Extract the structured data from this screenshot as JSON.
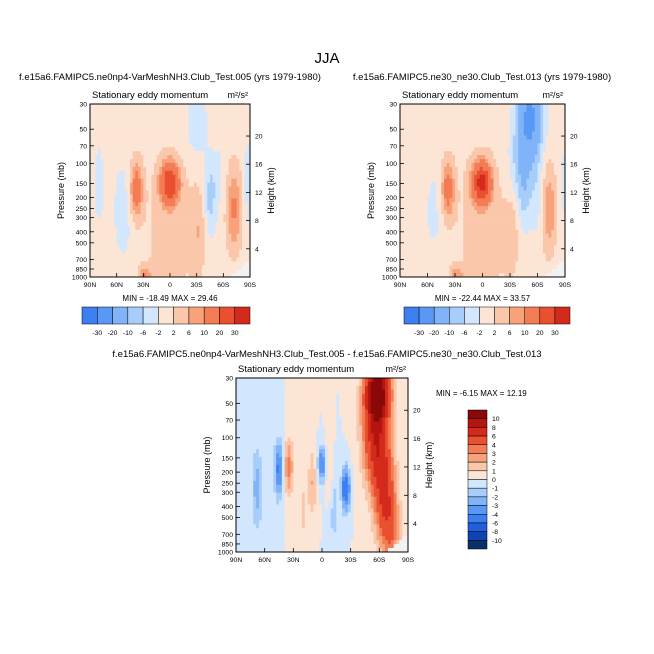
{
  "figure": {
    "title": "JJA",
    "colors": {
      "neg": [
        "#08306b",
        "#0c44b3",
        "#1f5fe0",
        "#3b7ff0",
        "#5b98f5",
        "#80b3f8",
        "#a8cdfb",
        "#d2e6fd"
      ],
      "pos": [
        "#fde5d6",
        "#fbc7aa",
        "#f8a27c",
        "#f47c55",
        "#e9502f",
        "#d42a1c",
        "#b5140f",
        "#8b0808"
      ],
      "mask": "#f2f2f2"
    }
  },
  "chart_data": [
    {
      "type": "heatmap",
      "id": "p1",
      "title": "f.e15a6.FAMIPC5.ne0np4-VarMeshNH3.Club_Test.005 (yrs 1979-1980)",
      "subtitle": "Stationary eddy momentum",
      "units": "m²/s²",
      "xlabel": "",
      "ylabel": "Pressure (mb)",
      "ylabel_right": "Height (km)",
      "x_ticks": [
        "90N",
        "60N",
        "30N",
        "0",
        "30S",
        "60S",
        "90S"
      ],
      "y_ticks": [
        "30",
        "50",
        "70",
        "100",
        "150",
        "200",
        "250",
        "300",
        "400",
        "500",
        "700",
        "850",
        "1000"
      ],
      "y_values": [
        30,
        50,
        70,
        100,
        150,
        200,
        250,
        300,
        400,
        500,
        700,
        850,
        1000
      ],
      "height_ticks": [
        "20",
        "16",
        "12",
        "8",
        "4"
      ],
      "height_values": [
        20,
        16,
        12,
        8,
        4
      ],
      "ylim": [
        1000,
        30
      ],
      "stats": "MIN = -18.49  MAX = 29.46",
      "min": -18.49,
      "max": 29.46,
      "colorbar_levels": [
        "-30",
        "-20",
        "-10",
        "-6",
        "-2",
        "2",
        "6",
        "10",
        "20",
        "30"
      ],
      "colorbar_orientation": "horizontal",
      "levels": [
        -30,
        -20,
        -10,
        -6,
        -2,
        2,
        6,
        10,
        20,
        30
      ],
      "features": [
        {
          "lat": 0.35,
          "p": 150,
          "amp": 29.5,
          "slat": 7,
          "slp": 0.28
        },
        {
          "lat": 38,
          "p": 170,
          "amp": 15,
          "slat": 5,
          "slp": 0.4
        },
        {
          "lat": -45,
          "p": 200,
          "amp": -8,
          "slat": 5,
          "slp": 0.55
        },
        {
          "lat": -72,
          "p": 250,
          "amp": 11,
          "slat": 6,
          "slp": 0.6
        },
        {
          "lat": -32,
          "p": 380,
          "amp": 5,
          "slat": 6,
          "slp": 0.55
        },
        {
          "lat": 52,
          "p": 260,
          "amp": -4,
          "slat": 9,
          "slp": 0.8
        },
        {
          "lat": 80,
          "p": 150,
          "amp": -3,
          "slat": 5,
          "slp": 0.8
        },
        {
          "lat": -30,
          "p": 45,
          "amp": -6,
          "slat": 8,
          "slp": 0.45
        },
        {
          "lat": -55,
          "p": 130,
          "amp": -3,
          "slat": 5,
          "slp": 0.5
        },
        {
          "lat": 28,
          "p": 950,
          "amp": 9,
          "slat": 5,
          "slp": 0.12
        },
        {
          "lat": 0,
          "p": 450,
          "amp": 3,
          "slat": 24,
          "slp": 1.4
        },
        {
          "lat": -88,
          "p": 150,
          "amp": -4,
          "slat": 4,
          "slp": 0.7
        }
      ]
    },
    {
      "type": "heatmap",
      "id": "p2",
      "title": "f.e15a6.FAMIPC5.ne30_ne30.Club_Test.013 (yrs 1979-1980)",
      "subtitle": "Stationary eddy momentum",
      "units": "m²/s²",
      "xlabel": "",
      "ylabel": "Pressure (mb)",
      "ylabel_right": "Height (km)",
      "x_ticks": [
        "90N",
        "60N",
        "30N",
        "0",
        "30S",
        "60S",
        "90S"
      ],
      "y_ticks": [
        "30",
        "50",
        "70",
        "100",
        "150",
        "200",
        "250",
        "300",
        "400",
        "500",
        "700",
        "850",
        "1000"
      ],
      "y_values": [
        30,
        50,
        70,
        100,
        150,
        200,
        250,
        300,
        400,
        500,
        700,
        850,
        1000
      ],
      "height_ticks": [
        "20",
        "16",
        "12",
        "8",
        "4"
      ],
      "height_values": [
        20,
        16,
        12,
        8,
        4
      ],
      "ylim": [
        1000,
        30
      ],
      "stats": "MIN = -22.44  MAX = 33.57",
      "min": -22.44,
      "max": 33.57,
      "colorbar_levels": [
        "-30",
        "-20",
        "-10",
        "-6",
        "-2",
        "2",
        "6",
        "10",
        "20",
        "30"
      ],
      "colorbar_orientation": "horizontal",
      "levels": [
        -30,
        -20,
        -10,
        -6,
        -2,
        2,
        6,
        10,
        20,
        30
      ],
      "features": [
        {
          "lat": 1,
          "p": 150,
          "amp": 33.5,
          "slat": 7,
          "slp": 0.28
        },
        {
          "lat": 38,
          "p": 170,
          "amp": 14,
          "slat": 5,
          "slp": 0.4
        },
        {
          "lat": -45,
          "p": 200,
          "amp": -5,
          "slat": 5,
          "slp": 0.55
        },
        {
          "lat": -72,
          "p": 250,
          "amp": 10,
          "slat": 6,
          "slp": 0.6
        },
        {
          "lat": -32,
          "p": 380,
          "amp": 4,
          "slat": 6,
          "slp": 0.55
        },
        {
          "lat": -52,
          "p": 40,
          "amp": -22.4,
          "slat": 9,
          "slp": 0.55
        },
        {
          "lat": -42,
          "p": 100,
          "amp": -8,
          "slat": 9,
          "slp": 0.6
        },
        {
          "lat": -60,
          "p": 200,
          "amp": -5,
          "slat": 6,
          "slp": 0.6
        },
        {
          "lat": 52,
          "p": 260,
          "amp": -3,
          "slat": 9,
          "slp": 0.8
        },
        {
          "lat": 28,
          "p": 950,
          "amp": 8,
          "slat": 5,
          "slp": 0.12
        },
        {
          "lat": 0,
          "p": 450,
          "amp": 3,
          "slat": 24,
          "slp": 1.4
        },
        {
          "lat": -88,
          "p": 150,
          "amp": -3,
          "slat": 4,
          "slp": 0.7
        }
      ]
    },
    {
      "type": "heatmap",
      "id": "p3",
      "title": "f.e15a6.FAMIPC5.ne0np4-VarMeshNH3.Club_Test.005 - f.e15a6.FAMIPC5.ne30_ne30.Club_Test.013",
      "subtitle": "Stationary eddy momentum",
      "units": "m²/s²",
      "xlabel": "",
      "ylabel": "Pressure (mb)",
      "ylabel_right": "Height (km)",
      "x_ticks": [
        "90N",
        "60N",
        "30N",
        "0",
        "30S",
        "60S",
        "90S"
      ],
      "y_ticks": [
        "30",
        "50",
        "70",
        "100",
        "150",
        "200",
        "250",
        "300",
        "400",
        "500",
        "700",
        "850",
        "1000"
      ],
      "y_values": [
        30,
        50,
        70,
        100,
        150,
        200,
        250,
        300,
        400,
        500,
        700,
        850,
        1000
      ],
      "height_ticks": [
        "20",
        "16",
        "12",
        "8",
        "4"
      ],
      "height_values": [
        20,
        16,
        12,
        8,
        4
      ],
      "ylim": [
        1000,
        30
      ],
      "stats": "MIN = -6.15  MAX = 12.19",
      "min": -6.15,
      "max": 12.19,
      "colorbar_levels": [
        "10",
        "8",
        "6",
        "4",
        "3",
        "2",
        "1",
        "0",
        "-1",
        "-2",
        "-3",
        "-4",
        "-6",
        "-8",
        "-10"
      ],
      "colorbar_orientation": "vertical",
      "levels": [
        -10,
        -8,
        -6,
        -4,
        -3,
        -2,
        -1,
        0,
        1,
        2,
        3,
        4,
        6,
        8,
        10
      ],
      "features": [
        {
          "lat": -58,
          "p": 40,
          "amp": 12.2,
          "slat": 9,
          "slp": 0.45
        },
        {
          "lat": -55,
          "p": 110,
          "amp": 6,
          "slat": 9,
          "slp": 0.6
        },
        {
          "lat": -65,
          "p": 280,
          "amp": 6,
          "slat": 8,
          "slp": 0.7
        },
        {
          "lat": -72,
          "p": 650,
          "amp": 3,
          "slat": 7,
          "slp": 0.5
        },
        {
          "lat": 35,
          "p": 180,
          "amp": 3.5,
          "slat": 3.5,
          "slp": 0.4
        },
        {
          "lat": 45,
          "p": 190,
          "amp": -4.5,
          "slat": 3.5,
          "slp": 0.4
        },
        {
          "lat": 0,
          "p": 170,
          "amp": -4.5,
          "slat": 3,
          "slp": 0.25
        },
        {
          "lat": -25,
          "p": 280,
          "amp": -6.1,
          "slat": 3,
          "slp": 0.3
        },
        {
          "lat": 68,
          "p": 280,
          "amp": -2.5,
          "slat": 4,
          "slp": 0.6
        },
        {
          "lat": 10,
          "p": 250,
          "amp": 2,
          "slat": 3,
          "slp": 0.5
        },
        {
          "lat": -8,
          "p": 200,
          "amp": 1.5,
          "slat": 3,
          "slp": 0.5
        },
        {
          "lat": -12,
          "p": 400,
          "amp": -1.5,
          "slat": 4,
          "slp": 0.6
        },
        {
          "lat": 20,
          "p": 450,
          "amp": 1.2,
          "slat": 4,
          "slp": 0.6
        }
      ]
    }
  ]
}
